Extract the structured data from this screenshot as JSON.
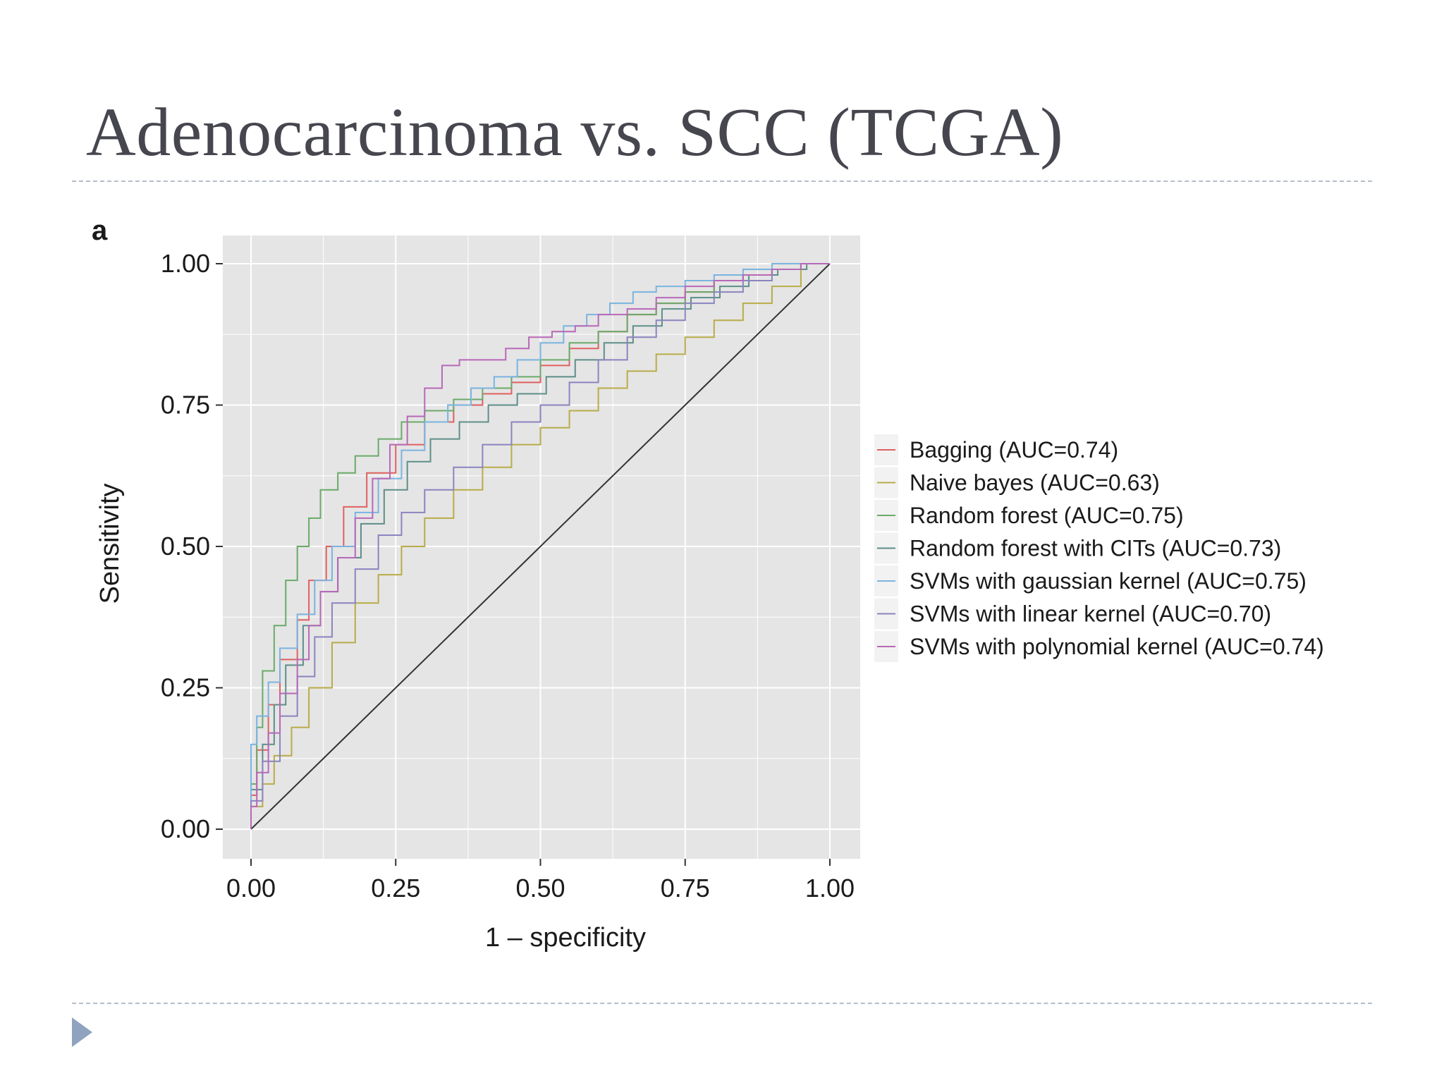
{
  "slide": {
    "title": "Adenocarcinoma vs. SCC (TCGA)",
    "panel_label": "a",
    "accent_color": "#8fa3bf",
    "next_icon": "triangle-right-icon"
  },
  "chart_data": {
    "type": "line",
    "title": "",
    "xlabel": "1 – specificity",
    "ylabel": "Sensitivity",
    "xlim": [
      0,
      1
    ],
    "ylim": [
      0,
      1
    ],
    "xticks": [
      "0.00",
      "0.25",
      "0.50",
      "0.75",
      "1.00"
    ],
    "yticks": [
      "0.00",
      "0.25",
      "0.50",
      "0.75",
      "1.00"
    ],
    "grid": true,
    "panel_background": "#e5e5e5",
    "legend_position": "right",
    "reference_line": {
      "x": [
        0,
        1
      ],
      "y": [
        0,
        1
      ],
      "color": "#333333"
    },
    "series": [
      {
        "name": "Bagging (AUC=0.74)",
        "color": "#e06060",
        "x": [
          0,
          0.01,
          0.03,
          0.05,
          0.08,
          0.1,
          0.13,
          0.16,
          0.2,
          0.25,
          0.3,
          0.35,
          0.4,
          0.45,
          0.5,
          0.55,
          0.6,
          0.65,
          0.7,
          0.75,
          0.8,
          0.85,
          0.9,
          0.95,
          1
        ],
        "y": [
          0,
          0.06,
          0.14,
          0.22,
          0.3,
          0.37,
          0.44,
          0.5,
          0.57,
          0.63,
          0.68,
          0.72,
          0.75,
          0.77,
          0.79,
          0.82,
          0.85,
          0.88,
          0.91,
          0.93,
          0.95,
          0.97,
          0.98,
          0.99,
          1
        ]
      },
      {
        "name": "Naive bayes (AUC=0.63)",
        "color": "#b8ac48",
        "x": [
          0,
          0.02,
          0.04,
          0.07,
          0.1,
          0.14,
          0.18,
          0.22,
          0.26,
          0.3,
          0.35,
          0.4,
          0.45,
          0.5,
          0.55,
          0.6,
          0.65,
          0.7,
          0.75,
          0.8,
          0.85,
          0.9,
          0.95,
          1
        ],
        "y": [
          0,
          0.04,
          0.08,
          0.13,
          0.18,
          0.25,
          0.33,
          0.4,
          0.45,
          0.5,
          0.55,
          0.6,
          0.64,
          0.68,
          0.71,
          0.74,
          0.78,
          0.81,
          0.84,
          0.87,
          0.9,
          0.93,
          0.96,
          1
        ]
      },
      {
        "name": "Random forest (AUC=0.75)",
        "color": "#6aaa6a",
        "x": [
          0,
          0.01,
          0.02,
          0.04,
          0.06,
          0.08,
          0.1,
          0.12,
          0.15,
          0.18,
          0.22,
          0.26,
          0.3,
          0.35,
          0.4,
          0.45,
          0.5,
          0.55,
          0.6,
          0.65,
          0.7,
          0.75,
          0.8,
          0.85,
          0.9,
          0.95,
          1
        ],
        "y": [
          0,
          0.08,
          0.18,
          0.28,
          0.36,
          0.44,
          0.5,
          0.55,
          0.6,
          0.63,
          0.66,
          0.69,
          0.72,
          0.74,
          0.76,
          0.78,
          0.8,
          0.83,
          0.86,
          0.88,
          0.91,
          0.93,
          0.95,
          0.97,
          0.98,
          0.99,
          1
        ]
      },
      {
        "name": "Random forest with CITs (AUC=0.73)",
        "color": "#5e8e88",
        "x": [
          0,
          0.02,
          0.04,
          0.06,
          0.09,
          0.12,
          0.15,
          0.19,
          0.23,
          0.27,
          0.31,
          0.36,
          0.41,
          0.46,
          0.51,
          0.56,
          0.61,
          0.66,
          0.71,
          0.76,
          0.81,
          0.86,
          0.91,
          0.96,
          1
        ],
        "y": [
          0,
          0.07,
          0.15,
          0.22,
          0.29,
          0.36,
          0.42,
          0.48,
          0.54,
          0.6,
          0.65,
          0.69,
          0.72,
          0.75,
          0.77,
          0.8,
          0.83,
          0.86,
          0.89,
          0.92,
          0.94,
          0.96,
          0.98,
          0.99,
          1
        ]
      },
      {
        "name": "SVMs with gaussian kernel (AUC=0.75)",
        "color": "#7ab4e0",
        "x": [
          0,
          0.01,
          0.03,
          0.05,
          0.08,
          0.11,
          0.14,
          0.18,
          0.22,
          0.26,
          0.3,
          0.34,
          0.38,
          0.42,
          0.46,
          0.5,
          0.54,
          0.58,
          0.62,
          0.66,
          0.7,
          0.75,
          0.8,
          0.85,
          0.9,
          0.95,
          1
        ],
        "y": [
          0,
          0.15,
          0.2,
          0.26,
          0.32,
          0.38,
          0.44,
          0.5,
          0.56,
          0.62,
          0.67,
          0.72,
          0.75,
          0.78,
          0.8,
          0.83,
          0.86,
          0.89,
          0.91,
          0.93,
          0.95,
          0.96,
          0.97,
          0.98,
          0.99,
          1,
          1
        ]
      },
      {
        "name": "SVMs with linear kernel (AUC=0.70)",
        "color": "#8a84c0",
        "x": [
          0,
          0.02,
          0.05,
          0.08,
          0.11,
          0.14,
          0.18,
          0.22,
          0.26,
          0.3,
          0.35,
          0.4,
          0.45,
          0.5,
          0.55,
          0.6,
          0.65,
          0.7,
          0.75,
          0.8,
          0.85,
          0.9,
          0.95,
          1
        ],
        "y": [
          0,
          0.05,
          0.12,
          0.2,
          0.27,
          0.34,
          0.4,
          0.46,
          0.52,
          0.56,
          0.6,
          0.64,
          0.68,
          0.72,
          0.75,
          0.79,
          0.83,
          0.87,
          0.9,
          0.93,
          0.95,
          0.97,
          0.99,
          1
        ]
      },
      {
        "name": "SVMs with polynomial kernel (AUC=0.74)",
        "color": "#b868b8",
        "x": [
          0,
          0.01,
          0.03,
          0.05,
          0.08,
          0.1,
          0.12,
          0.15,
          0.18,
          0.21,
          0.24,
          0.27,
          0.3,
          0.33,
          0.36,
          0.4,
          0.44,
          0.48,
          0.52,
          0.56,
          0.6,
          0.65,
          0.7,
          0.75,
          0.8,
          0.85,
          0.9,
          0.95,
          1
        ],
        "y": [
          0,
          0.04,
          0.1,
          0.17,
          0.24,
          0.3,
          0.36,
          0.42,
          0.48,
          0.55,
          0.62,
          0.68,
          0.73,
          0.78,
          0.82,
          0.83,
          0.83,
          0.85,
          0.87,
          0.88,
          0.89,
          0.91,
          0.92,
          0.94,
          0.96,
          0.97,
          0.98,
          0.99,
          1
        ]
      }
    ]
  }
}
